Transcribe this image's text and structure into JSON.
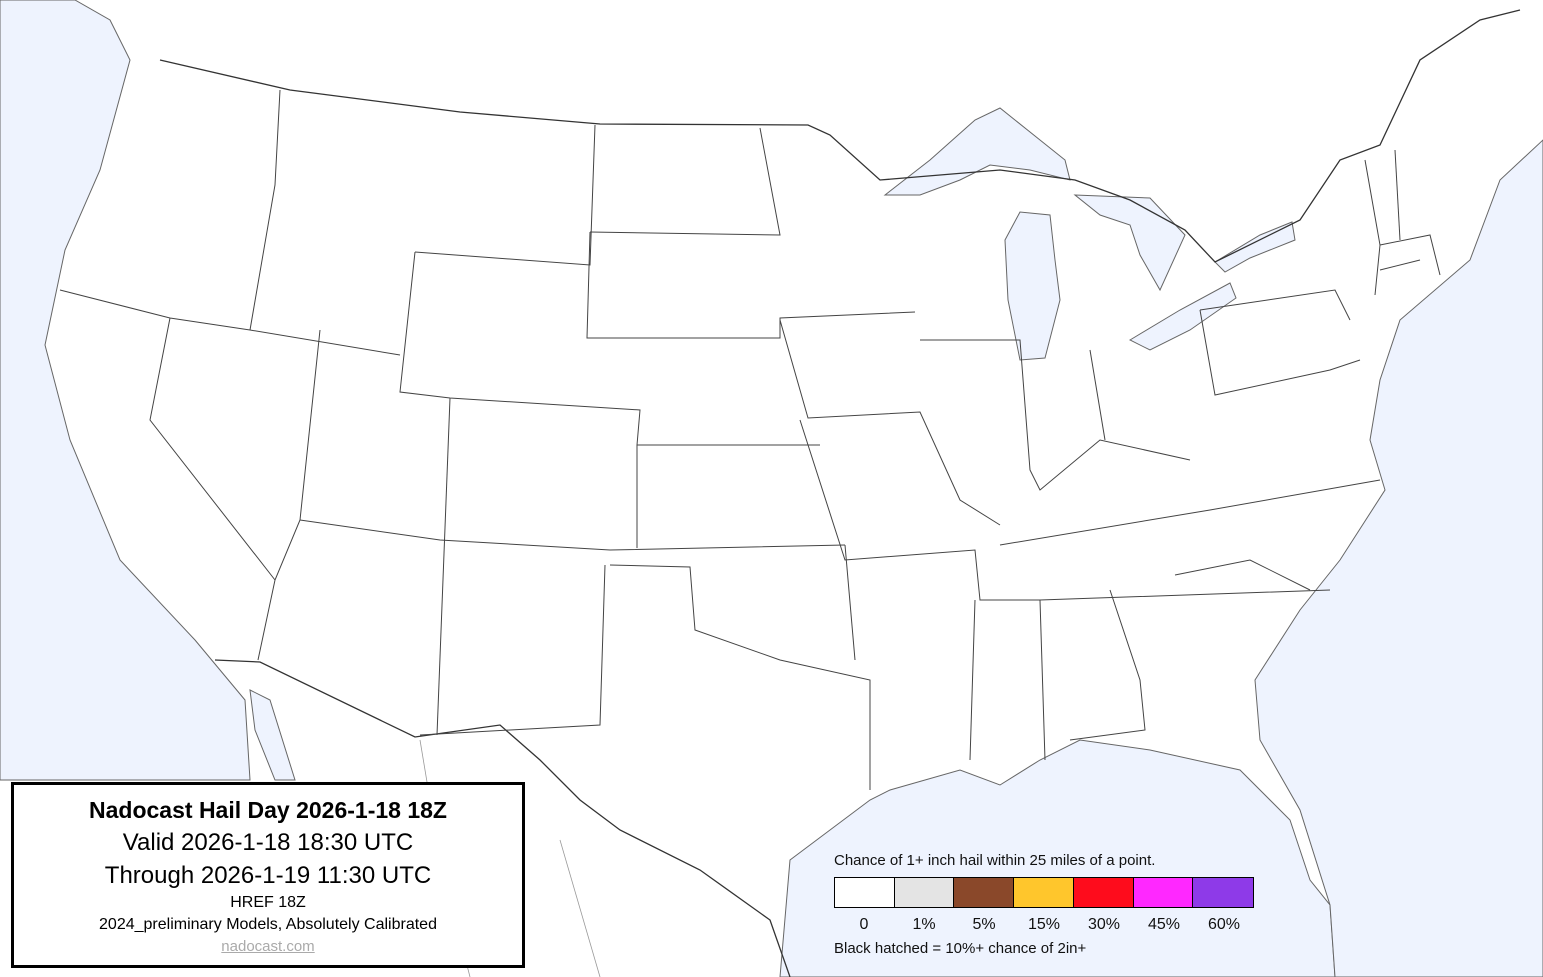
{
  "info": {
    "title": "Nadocast Hail Day 2026-1-18 18Z",
    "valid": "Valid 2026-1-18 18:30 UTC",
    "through": "Through 2026-1-19 11:30 UTC",
    "model": "HREF 18Z",
    "calibration": "2024_preliminary Models, Absolutely Calibrated",
    "link": "nadocast.com"
  },
  "legend": {
    "caption": "Chance of 1+ inch hail within 25 miles of a point.",
    "bins": [
      {
        "label": "0",
        "color": "#ffffff"
      },
      {
        "label": "1%",
        "color": "#e4e4e4"
      },
      {
        "label": "5%",
        "color": "#8a482a"
      },
      {
        "label": "15%",
        "color": "#ffc62c"
      },
      {
        "label": "30%",
        "color": "#fe0c1c"
      },
      {
        "label": "45%",
        "color": "#ff28ff"
      },
      {
        "label": "60%",
        "color": "#8e3ae8"
      }
    ],
    "note": "Black hatched = 10%+ chance of 2in+"
  },
  "colors": {
    "water": "#eef3fe",
    "land": "#ffffff"
  }
}
